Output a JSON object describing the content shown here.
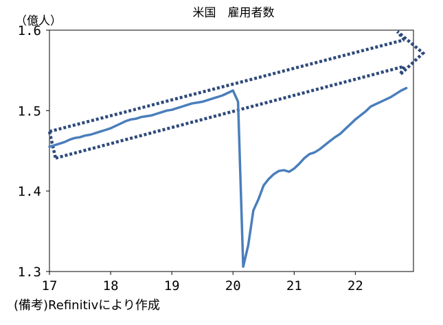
{
  "chart_data": {
    "type": "line",
    "title": "米国　雇用者数",
    "ylabel": "（億人）",
    "xlabel": "",
    "ylim": [
      1.3,
      1.6
    ],
    "y_ticks": [
      "1.6",
      "1.5",
      "1.4",
      "1.3"
    ],
    "x_tick_labels": [
      "17",
      "18",
      "19",
      "20",
      "21",
      "22"
    ],
    "xlim": [
      17.0,
      22.95
    ],
    "grid": false,
    "series": [
      {
        "color": "#4a7ebb",
        "x": [
          17.0,
          17.083,
          17.167,
          17.25,
          17.333,
          17.417,
          17.5,
          17.583,
          17.667,
          17.75,
          17.833,
          17.917,
          18.0,
          18.083,
          18.167,
          18.25,
          18.333,
          18.417,
          18.5,
          18.583,
          18.667,
          18.75,
          18.833,
          18.917,
          19.0,
          19.083,
          19.167,
          19.25,
          19.333,
          19.417,
          19.5,
          19.583,
          19.667,
          19.75,
          19.833,
          19.917,
          20.0,
          20.083,
          20.167,
          20.25,
          20.333,
          20.417,
          20.5,
          20.583,
          20.667,
          20.75,
          20.833,
          20.917,
          21.0,
          21.083,
          21.167,
          21.25,
          21.333,
          21.417,
          21.5,
          21.583,
          21.667,
          21.75,
          21.833,
          21.917,
          22.0,
          22.083,
          22.167,
          22.25,
          22.333,
          22.417,
          22.5,
          22.583,
          22.667,
          22.75,
          22.833
        ],
        "values": [
          1.455,
          1.457,
          1.459,
          1.461,
          1.464,
          1.466,
          1.467,
          1.469,
          1.47,
          1.472,
          1.474,
          1.476,
          1.478,
          1.481,
          1.484,
          1.487,
          1.489,
          1.49,
          1.492,
          1.493,
          1.494,
          1.496,
          1.498,
          1.5,
          1.501,
          1.503,
          1.505,
          1.507,
          1.509,
          1.51,
          1.511,
          1.513,
          1.515,
          1.517,
          1.519,
          1.522,
          1.525,
          1.511,
          1.306,
          1.333,
          1.376,
          1.39,
          1.407,
          1.415,
          1.421,
          1.425,
          1.426,
          1.424,
          1.428,
          1.434,
          1.441,
          1.446,
          1.448,
          1.452,
          1.457,
          1.462,
          1.467,
          1.471,
          1.477,
          1.483,
          1.489,
          1.494,
          1.499,
          1.505,
          1.508,
          1.511,
          1.514,
          1.517,
          1.521,
          1.525,
          1.528
        ]
      }
    ]
  },
  "source_note": "(備考)Refinitivにより作成",
  "annotation": {
    "shape": "dotted-arrow-band",
    "color": "#2e4a7a",
    "upper_line": [
      [
        17.0,
        1.474
      ],
      [
        22.8,
        1.588
      ]
    ],
    "lower_line": [
      [
        17.1,
        1.441
      ],
      [
        22.8,
        1.555
      ]
    ]
  }
}
